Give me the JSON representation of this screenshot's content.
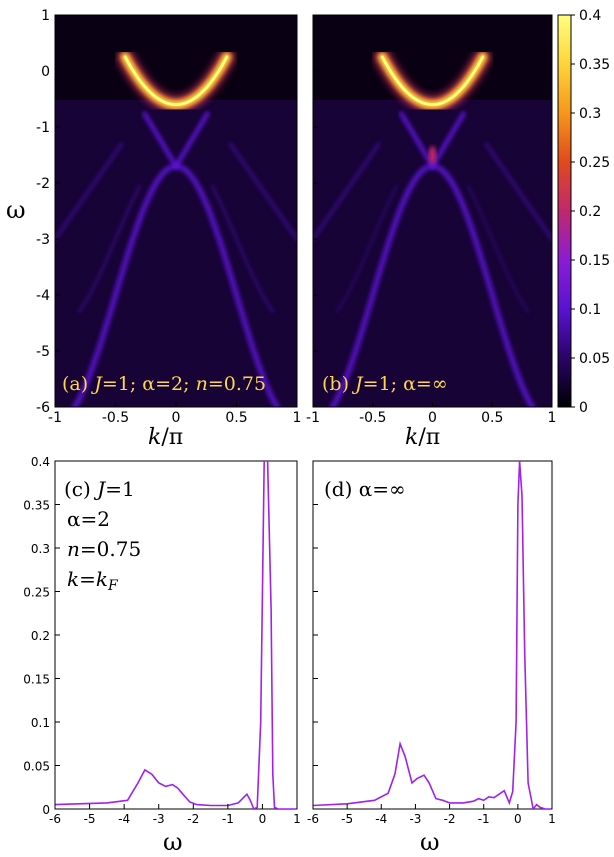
{
  "chart_data": [
    {
      "type": "heatmap",
      "panel_label": [
        "(a) ",
        "J",
        "=1; α=2; ",
        "n",
        "=0.75"
      ],
      "x_range": [
        -1,
        1
      ],
      "y_range": [
        -6,
        1
      ],
      "x_ticks": [
        "-1",
        "-0.5",
        "0",
        "0.5",
        "1"
      ],
      "y_ticks": [
        "1",
        "0",
        "-1",
        "-2",
        "-3",
        "-4",
        "-5",
        "-6"
      ],
      "ylabel": "ω",
      "xlabel": [
        "k",
        "/π"
      ],
      "bands": [
        {
          "shape": "parabola",
          "center": -0.6,
          "width": 1.25,
          "k_range": [
            -0.42,
            0.42
          ],
          "intensity": 0.4
        },
        {
          "shape": "v-crossing",
          "apex": -1.7,
          "slope": 5.5,
          "intensity": 0.1
        },
        {
          "shape": "upper-branches",
          "apex": -1.7,
          "slope": -2.5,
          "intensity": 0.08
        }
      ]
    },
    {
      "type": "heatmap",
      "panel_label": [
        "(b) ",
        "J",
        "=1; α=∞"
      ],
      "x_range": [
        -1,
        1
      ],
      "y_range": [
        -6,
        1
      ],
      "x_ticks": [
        "-1",
        "-0.5",
        "0",
        "0.5",
        "1"
      ],
      "xlabel": [
        "k",
        "/π"
      ],
      "colorbar": {
        "range": [
          0,
          0.4
        ],
        "ticks": [
          "0.4",
          "0.35",
          "0.3",
          "0.25",
          "0.2",
          "0.15",
          "0.1",
          "0.05",
          "0"
        ],
        "colors": [
          "#000000",
          "#2a0366",
          "#5a12d2",
          "#8a1cd4",
          "#c0286e",
          "#e04a1c",
          "#f7961a",
          "#ffd43a",
          "#ffff80"
        ]
      }
    },
    {
      "type": "line",
      "panel_label": [
        "(c) ",
        "J",
        "=1"
      ],
      "legend_lines": [
        [
          "α=2"
        ],
        [
          "",
          "n",
          "=0.75"
        ],
        [
          "",
          "k",
          "=",
          "k",
          "F"
        ]
      ],
      "x_range": [
        -6,
        1
      ],
      "y_range": [
        0,
        0.4
      ],
      "x_ticks": [
        "-6",
        "-5",
        "-4",
        "-3",
        "-2",
        "-1",
        "0",
        "1"
      ],
      "y_ticks": [
        "0.4",
        "0.35",
        "0.3",
        "0.25",
        "0.2",
        "0.15",
        "0.1",
        "0.05",
        "0"
      ],
      "xlabel": "ω",
      "color": "#a020f0",
      "x": [
        -6,
        -4.5,
        -4.1,
        -3.9,
        -3.6,
        -3.4,
        -3.2,
        -3.0,
        -2.8,
        -2.6,
        -2.45,
        -2.3,
        -2.1,
        -1.9,
        -1.5,
        -1.0,
        -0.7,
        -0.55,
        -0.45,
        -0.35,
        -0.25,
        -0.15,
        -0.05,
        0.05,
        0.15,
        0.25,
        0.3,
        0.35,
        0.45,
        0.6,
        0.8,
        1.0
      ],
      "y": [
        0.005,
        0.007,
        0.009,
        0.01,
        0.03,
        0.045,
        0.04,
        0.03,
        0.026,
        0.028,
        0.024,
        0.017,
        0.008,
        0.005,
        0.004,
        0.004,
        0.007,
        0.013,
        0.017,
        0.01,
        0.0,
        0.002,
        0.1,
        0.4,
        0.4,
        0.23,
        0.04,
        0.002,
        0.0,
        0.0,
        0.0,
        0.0
      ]
    },
    {
      "type": "line",
      "panel_label": [
        "(d) α=∞"
      ],
      "x_range": [
        -6,
        1
      ],
      "x_ticks": [
        "-6",
        "-5",
        "-4",
        "-3",
        "-2",
        "-1",
        "0",
        "1"
      ],
      "y_range": [
        0,
        0.4
      ],
      "xlabel": "ω",
      "color": "#a020f0",
      "x": [
        -6,
        -5,
        -4.2,
        -3.8,
        -3.6,
        -3.45,
        -3.3,
        -3.1,
        -2.95,
        -2.75,
        -2.6,
        -2.4,
        -2.2,
        -2.0,
        -1.6,
        -1.3,
        -1.15,
        -1.0,
        -0.85,
        -0.7,
        -0.55,
        -0.4,
        -0.25,
        -0.15,
        -0.05,
        0.0,
        0.05,
        0.12,
        0.2,
        0.3,
        0.45,
        0.55,
        0.65,
        0.8,
        1.0
      ],
      "y": [
        0.004,
        0.006,
        0.01,
        0.018,
        0.04,
        0.075,
        0.06,
        0.03,
        0.035,
        0.039,
        0.03,
        0.012,
        0.01,
        0.007,
        0.007,
        0.009,
        0.012,
        0.01,
        0.014,
        0.013,
        0.017,
        0.021,
        0.007,
        0.02,
        0.1,
        0.35,
        0.4,
        0.36,
        0.18,
        0.03,
        0.0,
        0.005,
        0.002,
        0.0,
        0.0
      ]
    }
  ]
}
